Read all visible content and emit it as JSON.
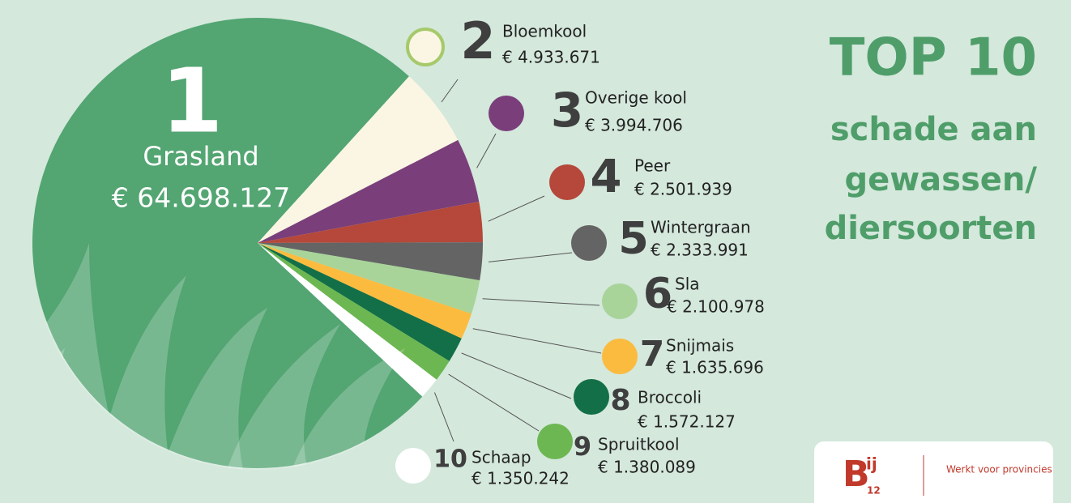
{
  "chart_data": {
    "type": "pie",
    "title": "TOP 10",
    "subtitle": [
      "schade aan",
      "gewassen/",
      "diersoorten"
    ],
    "ranks": [
      "1",
      "2",
      "3",
      "4",
      "5",
      "6",
      "7",
      "8",
      "9",
      "10"
    ],
    "categories": [
      "Grasland",
      "Bloemkool",
      "Overige kool",
      "Peer",
      "Wintergraan",
      "Sla",
      "Snijmais",
      "Broccoli",
      "Spruitkool",
      "Schaap"
    ],
    "values": [
      64698127,
      4933671,
      3994706,
      2501939,
      2333991,
      2100978,
      1635696,
      1572127,
      1380089,
      1350242
    ],
    "value_labels": [
      "€ 64.698.127",
      "€ 4.933.671",
      "€ 3.994.706",
      "€ 2.501.939",
      "€ 2.333.991",
      "€ 2.100.978",
      "€ 1.635.696",
      "€ 1.572.127",
      "€ 1.380.089",
      "€ 1.350.242"
    ],
    "colors": [
      "#53a572",
      "#fbf6e4",
      "#7a3f7a",
      "#b5483a",
      "#646464",
      "#a8d49a",
      "#fbbb3f",
      "#136f47",
      "#6cb752",
      "#ffffff"
    ]
  },
  "logo": {
    "main": "B",
    "sup": "ij",
    "sub": "12",
    "tagline": "Werkt voor provincies"
  }
}
